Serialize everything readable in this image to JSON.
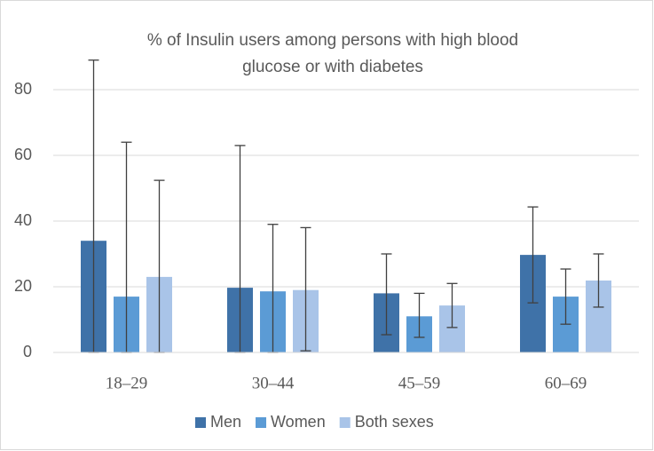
{
  "chart_data": {
    "type": "bar",
    "title": [
      "% of Insulin users among persons with high blood",
      "glucose or with diabetes"
    ],
    "categories": [
      "18–29",
      "30–44",
      "45–59",
      "60–69"
    ],
    "series": [
      {
        "name": "Men",
        "color": "#3f72a8",
        "values": [
          34,
          19.7,
          18,
          29.7
        ],
        "ci_low": [
          0,
          0,
          5.4,
          15.1
        ],
        "ci_high": [
          89,
          63,
          30,
          44.3
        ]
      },
      {
        "name": "Women",
        "color": "#5b9bd5",
        "values": [
          17,
          18.6,
          11,
          17
        ],
        "ci_low": [
          0,
          0,
          4.6,
          8.6
        ],
        "ci_high": [
          64,
          39,
          18,
          25.4
        ]
      },
      {
        "name": "Both sexes",
        "color": "#a9c4e8",
        "values": [
          23,
          19,
          14.3,
          21.9
        ],
        "ci_low": [
          0,
          0.5,
          7.6,
          13.8
        ],
        "ci_high": [
          52.4,
          38,
          21,
          30
        ]
      }
    ],
    "ylim": [
      0,
      100
    ],
    "yticks": [
      0,
      20,
      40,
      60,
      80
    ],
    "grid": true,
    "legend": "bottom"
  }
}
